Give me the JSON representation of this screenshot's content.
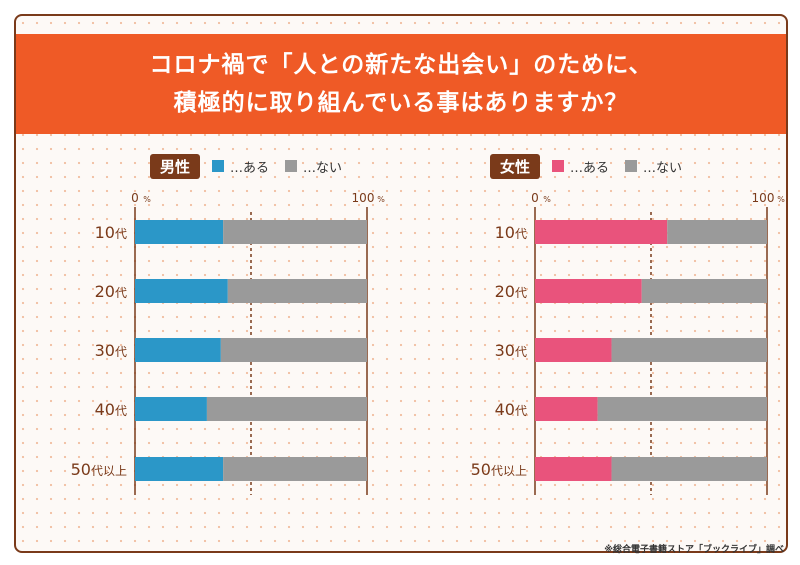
{
  "title": {
    "line1": "コロナ禍で「人との新たな出会い」のために、",
    "line2": "積極的に取り組んでいる事はありますか？"
  },
  "legend": {
    "yes": "…ある",
    "no": "…ない"
  },
  "colors": {
    "male_yes": "#2b97c8",
    "female_yes": "#e9537c",
    "no": "#9a9a9a"
  },
  "axis": {
    "min_label": "0",
    "max_label": "100",
    "unit": "%"
  },
  "credit": "※総合電子書籍ストア「ブックライブ」調べ",
  "chart_data": [
    {
      "type": "bar",
      "title": "男性",
      "orientation": "horizontal",
      "stacked": true,
      "categories": [
        "10代",
        "20代",
        "30代",
        "40代",
        "50代以上"
      ],
      "series": [
        {
          "name": "…ある",
          "values": [
            38,
            40,
            37,
            31,
            38
          ]
        },
        {
          "name": "…ない",
          "values": [
            62,
            60,
            63,
            69,
            62
          ]
        }
      ],
      "xlim": [
        0,
        100
      ],
      "grid": "dashed line at 50%"
    },
    {
      "type": "bar",
      "title": "女性",
      "orientation": "horizontal",
      "stacked": true,
      "categories": [
        "10代",
        "20代",
        "30代",
        "40代",
        "50代以上"
      ],
      "series": [
        {
          "name": "…ある",
          "values": [
            57,
            46,
            33,
            27,
            33
          ]
        },
        {
          "name": "…ない",
          "values": [
            43,
            54,
            67,
            73,
            67
          ]
        }
      ],
      "xlim": [
        0,
        100
      ],
      "grid": "dashed line at 50%"
    }
  ]
}
